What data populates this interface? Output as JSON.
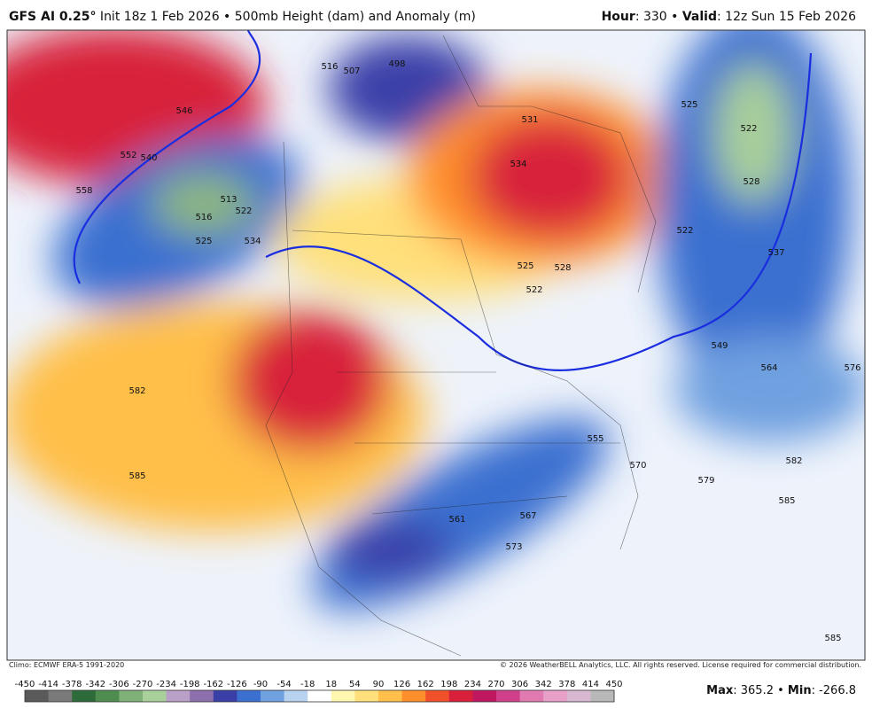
{
  "header": {
    "model": "GFS AI 0.25°",
    "description": " Init 18z 1 Feb 2026 • 500mb Height (dam) and Anomaly (m)",
    "hour_label": "Hour",
    "hour": ": 330 • ",
    "valid_label": "Valid",
    "valid": ": 12z Sun 15 Feb 2026"
  },
  "map": {
    "contour_labels": [
      516,
      507,
      498,
      546,
      552,
      540,
      558,
      513,
      516,
      522,
      525,
      534,
      531,
      534,
      525,
      528,
      522,
      525,
      522,
      528,
      522,
      537,
      549,
      564,
      576,
      582,
      585,
      555,
      570,
      582,
      579,
      585,
      561,
      567,
      573,
      585
    ]
  },
  "footer": {
    "climo": "Climo: ECMWF ERA-5 1991-2020",
    "copyright": "© 2026 WeatherBELL Analytics, LLC. All rights reserved. License required for commercial distribution."
  },
  "colorbar": {
    "ticks": [
      -450,
      -414,
      -378,
      -342,
      -306,
      -270,
      -234,
      -198,
      -162,
      -126,
      -90,
      -54,
      -18,
      18,
      54,
      90,
      126,
      162,
      198,
      234,
      270,
      306,
      342,
      378,
      414,
      450
    ],
    "colors": [
      "#5a5a5a",
      "#7a7a7a",
      "#2e6b3a",
      "#4e8c50",
      "#7fb077",
      "#a9cf9a",
      "#b9a0c8",
      "#8e6fae",
      "#3a3fa8",
      "#3b6fd0",
      "#6fa0e0",
      "#b8d3f0",
      "#ffffff",
      "#fff6b0",
      "#ffe07a",
      "#ffbf4a",
      "#ff8f2a",
      "#f0502a",
      "#d8203a",
      "#c01860",
      "#d0408a",
      "#e07ab0",
      "#e8a0c8",
      "#d8b8d0",
      "#b8b8b8"
    ]
  },
  "stats": {
    "max_label": "Max",
    "max": ": 365.2 • ",
    "min_label": "Min",
    "min": ": -266.8"
  }
}
